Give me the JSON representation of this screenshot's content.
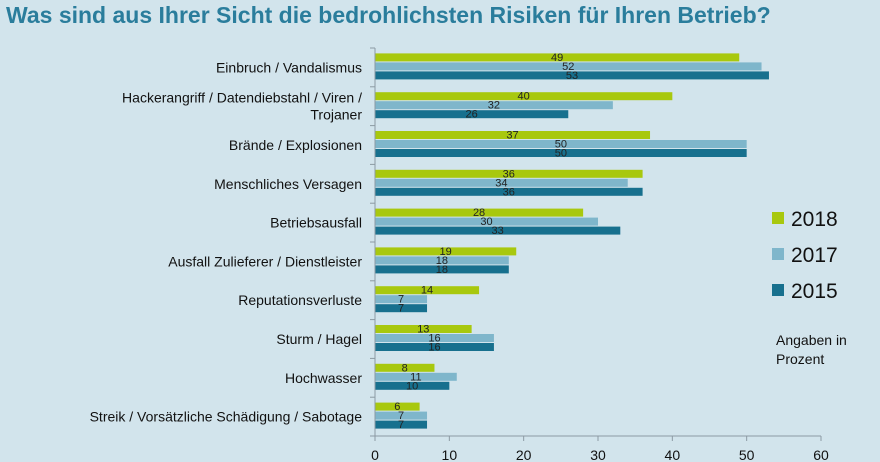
{
  "title": "Was sind aus Ihrer Sicht die bedrohlichsten Risiken für Ihren Betrieb?",
  "note": "Angaben in Prozent",
  "colors": {
    "2018": "#a8c80e",
    "2017": "#7fb6cb",
    "2015": "#17708e",
    "background": "#d2e4ec",
    "title": "#2a7d9c"
  },
  "chart_data": {
    "type": "bar",
    "orientation": "horizontal",
    "categories": [
      "Einbruch / Vandalismus",
      "Hackerangriff / Datendiebstahl / Viren / Trojaner",
      "Brände / Explosionen",
      "Menschliches Versagen",
      "Betriebsausfall",
      "Ausfall Zulieferer / Dienstleister",
      "Reputationsverluste",
      "Sturm / Hagel",
      "Hochwasser",
      "Streik / Vorsätzliche Schädigung / Sabotage"
    ],
    "category_lines": [
      [
        "Einbruch / Vandalismus"
      ],
      [
        "Hackerangriff / Datendiebstahl / Viren /",
        "Trojaner"
      ],
      [
        "Brände / Explosionen"
      ],
      [
        "Menschliches Versagen"
      ],
      [
        "Betriebsausfall"
      ],
      [
        "Ausfall Zulieferer / Dienstleister"
      ],
      [
        "Reputationsverluste"
      ],
      [
        "Sturm / Hagel"
      ],
      [
        "Hochwasser"
      ],
      [
        "Streik / Vorsätzliche Schädigung / Sabotage"
      ]
    ],
    "series": [
      {
        "name": "2018",
        "color": "#a8c80e",
        "values": [
          49,
          40,
          37,
          36,
          28,
          19,
          14,
          13,
          8,
          6
        ]
      },
      {
        "name": "2017",
        "color": "#7fb6cb",
        "values": [
          52,
          32,
          50,
          34,
          30,
          18,
          7,
          16,
          11,
          7
        ]
      },
      {
        "name": "2015",
        "color": "#17708e",
        "values": [
          53,
          26,
          50,
          36,
          33,
          18,
          7,
          16,
          10,
          7
        ]
      }
    ],
    "value_labels": [
      [
        "49",
        "52",
        "53"
      ],
      [
        "40",
        "32",
        "26"
      ],
      [
        "37",
        "50",
        "50"
      ],
      [
        "36",
        "34",
        "36"
      ],
      [
        "28",
        "30",
        "33"
      ],
      [
        "19",
        "18",
        "18"
      ],
      [
        "14",
        "7",
        "7"
      ],
      [
        "13",
        "16",
        "16"
      ],
      [
        "8",
        "11",
        "10"
      ],
      [
        "6",
        "7",
        "7"
      ]
    ],
    "xlim": [
      0,
      60
    ],
    "xticks": [
      0,
      10,
      20,
      30,
      40,
      50,
      60
    ],
    "legend": [
      "2018",
      "2017",
      "2015"
    ],
    "legend_position": "right",
    "grid": false
  }
}
